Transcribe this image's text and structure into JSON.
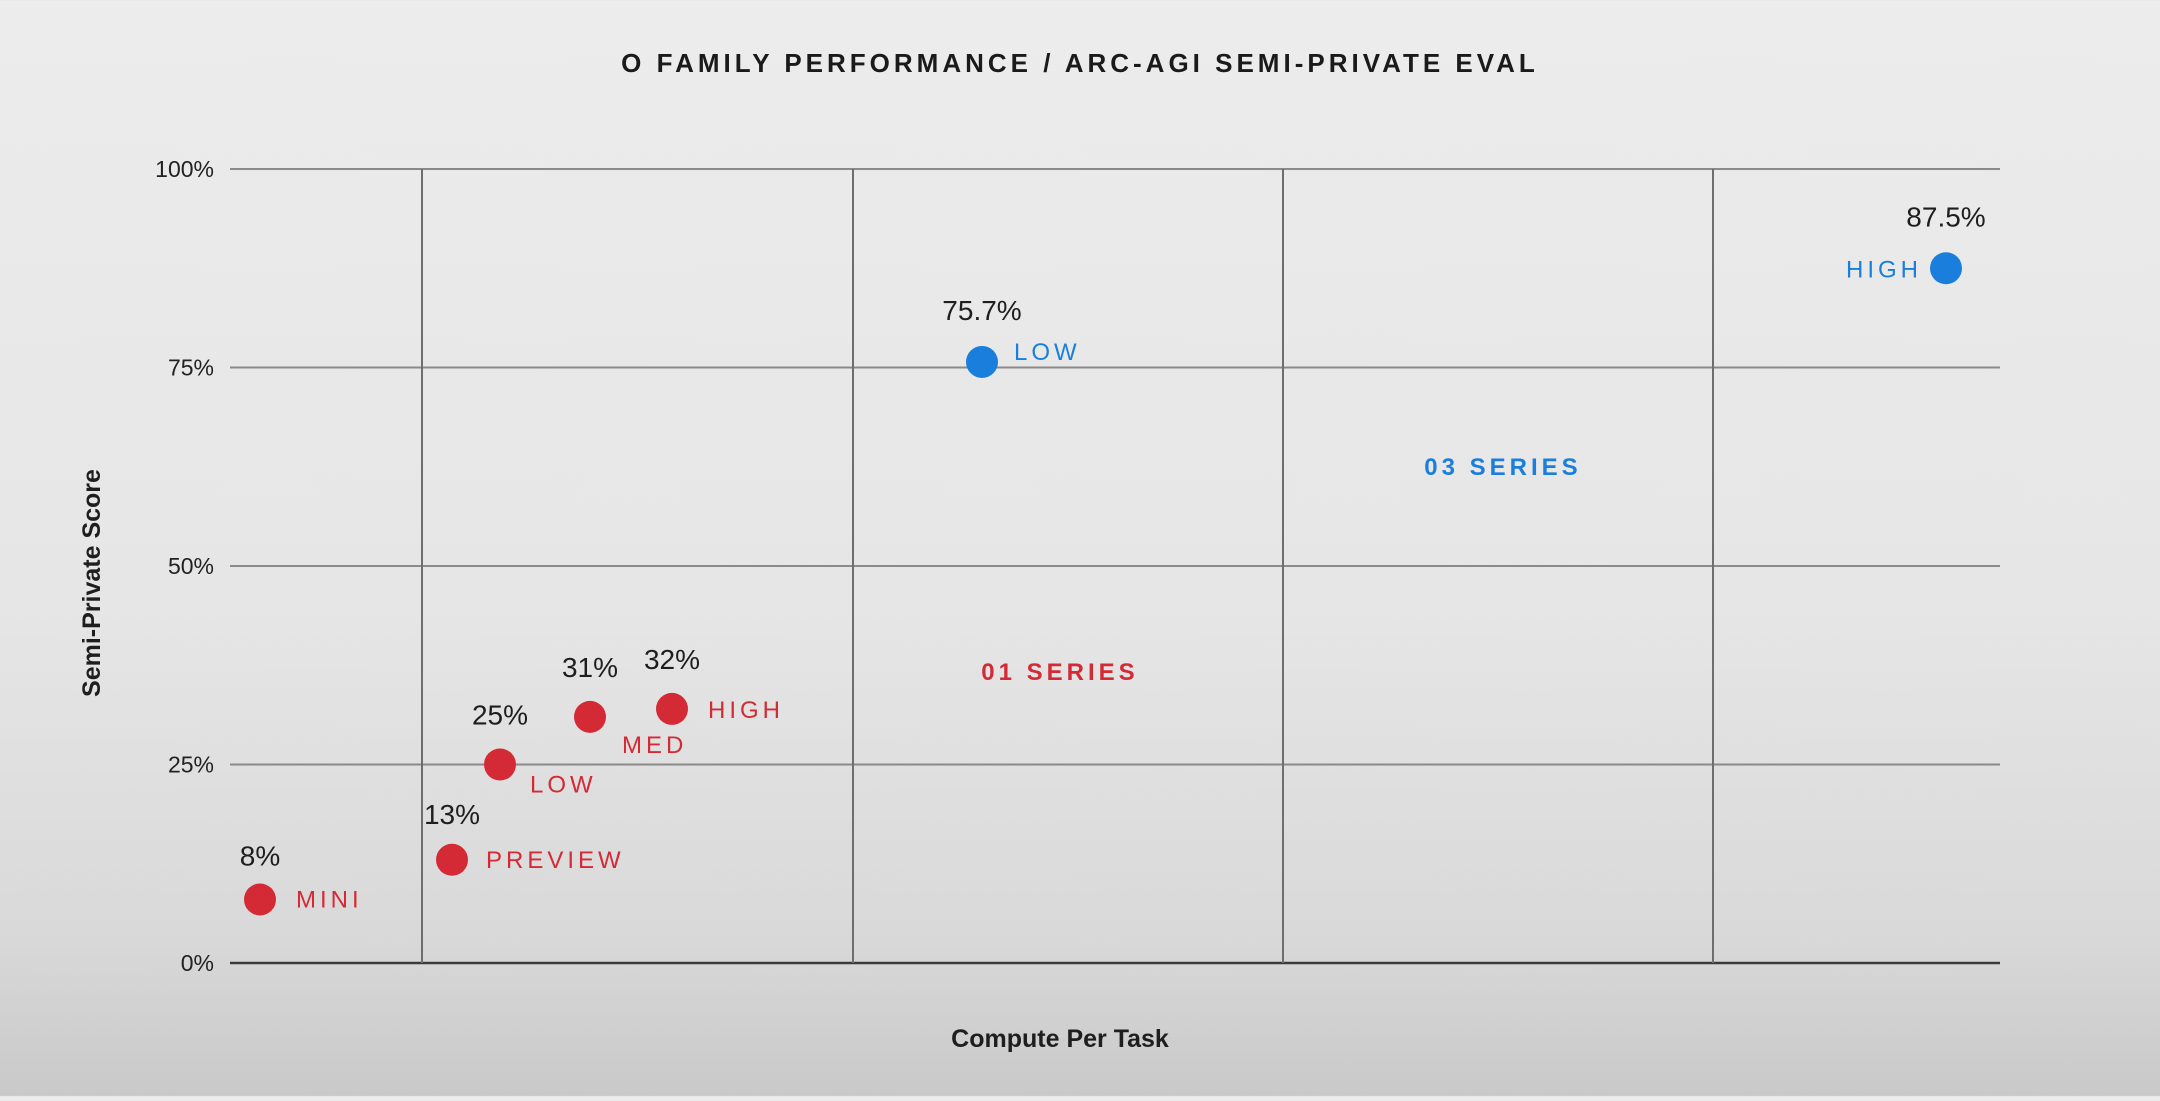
{
  "chart_data": {
    "type": "scatter",
    "title": "O FAMILY PERFORMANCE / ARC-AGI SEMI-PRIVATE EVAL",
    "xlabel": "Compute Per Task",
    "ylabel": "Semi-Private Score",
    "ylim": [
      0,
      100
    ],
    "yticks": [
      "0%",
      "25%",
      "50%",
      "75%",
      "100%"
    ],
    "grid": true,
    "colors": {
      "o1": "#d42a35",
      "o3": "#1a7fdc"
    },
    "series": [
      {
        "name": "01 SERIES",
        "color": "#d42a35",
        "points": [
          {
            "label": "MINI",
            "value_label": "8%",
            "y": 8
          },
          {
            "label": "PREVIEW",
            "value_label": "13%",
            "y": 13
          },
          {
            "label": "LOW",
            "value_label": "25%",
            "y": 25
          },
          {
            "label": "MED",
            "value_label": "31%",
            "y": 31
          },
          {
            "label": "HIGH",
            "value_label": "32%",
            "y": 32
          }
        ]
      },
      {
        "name": "03 SERIES",
        "color": "#1a7fdc",
        "points": [
          {
            "label": "LOW",
            "value_label": "75.7%",
            "y": 75.7
          },
          {
            "label": "HIGH",
            "value_label": "87.5%",
            "y": 87.5
          }
        ]
      }
    ]
  }
}
